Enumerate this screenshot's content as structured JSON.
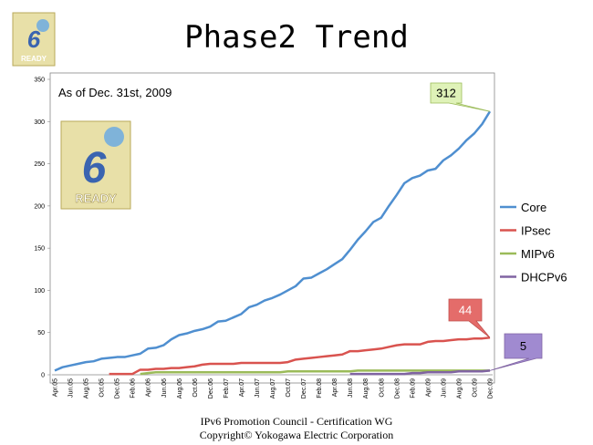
{
  "chart_data": {
    "type": "line",
    "title": "Phase2 Trend",
    "annotation": "As of Dec. 31st, 2009",
    "logo_text": "READY",
    "footer": [
      "IPv6 Promotion Council - Certification WG",
      "Copyright©   Yokogawa Electric Corporation"
    ],
    "categories": [
      "Apr.05",
      null,
      "Jun.05",
      null,
      "Aug.05",
      null,
      "Oct.05",
      null,
      "Dec.05",
      null,
      "Feb.06",
      null,
      "Apr.06",
      null,
      "Jun.06",
      null,
      "Aug.06",
      null,
      "Oct.06",
      null,
      "Dec.06",
      null,
      "Feb.07",
      null,
      "Apr.07",
      null,
      "Jun.07",
      null,
      "Aug.07",
      null,
      "Oct.07",
      null,
      "Dec.07",
      null,
      "Feb.08",
      null,
      "Apr.08",
      null,
      "Jun.08",
      null,
      "Aug.08",
      null,
      "Oct.08",
      null,
      "Dec.08",
      null,
      "Feb.09",
      null,
      "Apr.09",
      null,
      "Jun.09",
      null,
      "Aug.09",
      null,
      "Oct.09",
      null,
      "Dec.09"
    ],
    "series": [
      {
        "name": "Core",
        "color": "#4f8fd0",
        "values": [
          5,
          9,
          11,
          13,
          15,
          16,
          19,
          20,
          21,
          21,
          23,
          25,
          31,
          32,
          35,
          42,
          47,
          49,
          52,
          54,
          57,
          63,
          64,
          68,
          72,
          80,
          83,
          88,
          91,
          95,
          100,
          105,
          114,
          115,
          120,
          125,
          131,
          137,
          148,
          160,
          170,
          181,
          186,
          200,
          213,
          227,
          233,
          236,
          242,
          244,
          254,
          260,
          268,
          278,
          286,
          297,
          312
        ]
      },
      {
        "name": "IPsec",
        "color": "#d9534f",
        "values": [
          null,
          null,
          null,
          null,
          null,
          null,
          null,
          1,
          1,
          1,
          1,
          6,
          6,
          7,
          7,
          8,
          8,
          9,
          10,
          12,
          13,
          13,
          13,
          13,
          14,
          14,
          14,
          14,
          14,
          14,
          15,
          18,
          19,
          20,
          21,
          22,
          23,
          24,
          28,
          28,
          29,
          30,
          31,
          33,
          35,
          36,
          36,
          36,
          39,
          40,
          40,
          41,
          42,
          42,
          43,
          43,
          44
        ]
      },
      {
        "name": "MIPv6",
        "color": "#9bbb59",
        "values": [
          null,
          null,
          null,
          null,
          null,
          null,
          null,
          null,
          null,
          null,
          null,
          1,
          2,
          3,
          3,
          3,
          3,
          3,
          3,
          3,
          3,
          3,
          3,
          3,
          3,
          3,
          3,
          3,
          3,
          3,
          4,
          4,
          4,
          4,
          4,
          4,
          4,
          4,
          4,
          5,
          5,
          5,
          5,
          5,
          5,
          5,
          5,
          5,
          5,
          5,
          5,
          5,
          5,
          5,
          5,
          5,
          5
        ]
      },
      {
        "name": "DHCPv6",
        "color": "#8064a2",
        "values": [
          null,
          null,
          null,
          null,
          null,
          null,
          null,
          null,
          null,
          null,
          null,
          null,
          null,
          null,
          null,
          null,
          null,
          null,
          null,
          null,
          null,
          null,
          null,
          null,
          null,
          null,
          null,
          null,
          null,
          null,
          null,
          null,
          null,
          null,
          null,
          null,
          null,
          null,
          1,
          1,
          1,
          1,
          1,
          1,
          1,
          1,
          2,
          2,
          3,
          3,
          3,
          3,
          4,
          4,
          4,
          4,
          5
        ]
      }
    ],
    "ylim": [
      0,
      350
    ],
    "yticks": [
      0,
      50,
      100,
      150,
      200,
      250,
      300,
      350
    ],
    "grid": false,
    "legend": "right"
  }
}
